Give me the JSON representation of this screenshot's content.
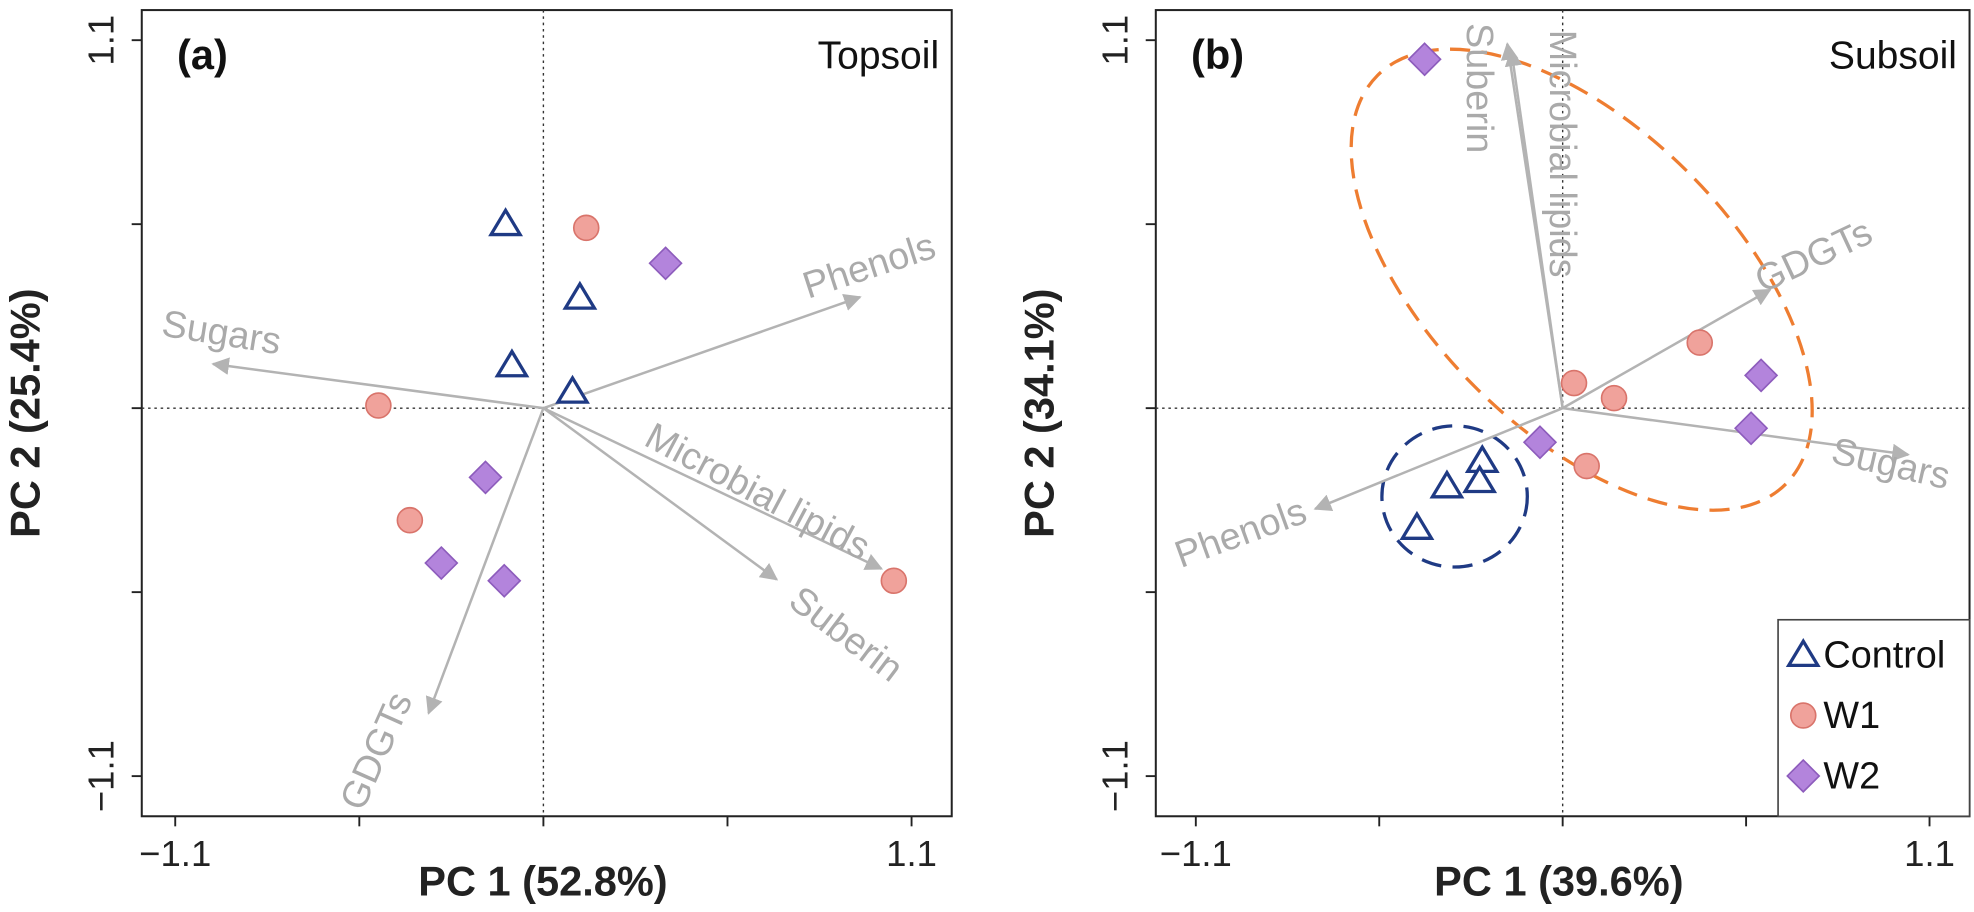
{
  "chart_data": [
    {
      "type": "scatter",
      "panel": "(a)",
      "title": "Topsoil",
      "x_label": "PC 1 (52.8%)",
      "y_label": "PC 2 (25.4%)",
      "xlim": [
        -1.2,
        1.22
      ],
      "ylim": [
        -1.22,
        1.19
      ],
      "xticks": [
        {
          "value": -1.1,
          "label": "−1.1"
        },
        1.1
      ],
      "yticks": [
        {
          "value": -1.1,
          "label": "−1.1"
        },
        1.1
      ],
      "minor_xticks": [
        -0.55,
        0,
        0.55
      ],
      "minor_yticks": [
        -0.55,
        0,
        0.55
      ],
      "series": [
        {
          "name": "Control",
          "marker": "triangle",
          "color": "#1f3a84",
          "x": [
            -0.113,
            0.109,
            -0.094,
            0.087
          ],
          "y": [
            0.55,
            0.33,
            0.128,
            0.049
          ]
        },
        {
          "name": "W1",
          "marker": "circle",
          "color": "#f0a29b",
          "x": [
            0.128,
            -0.493,
            -0.399,
            1.047
          ],
          "y": [
            0.539,
            0.008,
            -0.335,
            -0.516
          ]
        },
        {
          "name": "W2",
          "marker": "diamond",
          "color": "#b384dc",
          "x": [
            0.365,
            -0.173,
            -0.305,
            -0.117
          ],
          "y": [
            0.433,
            -0.207,
            -0.463,
            -0.516
          ]
        }
      ],
      "loadings": [
        {
          "name": "Phenols",
          "x": 0.946,
          "y": 0.332
        },
        {
          "name": "Sugars",
          "x": -0.987,
          "y": 0.132
        },
        {
          "name": "Microbial lipids",
          "x": 1.01,
          "y": -0.48
        },
        {
          "name": "Suberin",
          "x": 0.697,
          "y": -0.512
        },
        {
          "name": "GDGTs",
          "x": -0.343,
          "y": -0.912
        }
      ]
    },
    {
      "type": "scatter",
      "panel": "(b)",
      "title": "Subsoil",
      "x_label": "PC 1 (39.6%)",
      "y_label": "PC 2 (34.1%)",
      "xlim": [
        -1.22,
        1.22
      ],
      "ylim": [
        -1.22,
        1.19
      ],
      "xticks": [
        {
          "value": -1.1,
          "label": "−1.1"
        },
        1.1
      ],
      "yticks": [
        {
          "value": -1.1,
          "label": "−1.1"
        },
        1.1
      ],
      "minor_xticks": [
        -0.55,
        0,
        0.55
      ],
      "minor_yticks": [
        -0.55,
        0,
        0.55
      ],
      "legend": "lower right",
      "series": [
        {
          "name": "Control",
          "marker": "triangle",
          "color": "#1f3a84",
          "x": [
            -0.241,
            -0.347,
            -0.249,
            -0.437
          ],
          "y": [
            -0.158,
            -0.234,
            -0.218,
            -0.358
          ]
        },
        {
          "name": "W1",
          "marker": "circle",
          "color": "#f0a29b",
          "x": [
            0.034,
            0.154,
            0.411,
            0.072
          ],
          "y": [
            0.075,
            0.03,
            0.196,
            -0.173
          ]
        },
        {
          "name": "W2",
          "marker": "diamond",
          "color": "#b384dc",
          "x": [
            -0.414,
            0.595,
            0.565,
            -0.068
          ],
          "y": [
            1.043,
            0.098,
            -0.06,
            -0.102
          ]
        }
      ],
      "loadings": [
        {
          "name": "Suberin",
          "x": -0.166,
          "y": 1.089
        },
        {
          "name": "Microbial lipids",
          "x": -0.154,
          "y": 1.07
        },
        {
          "name": "GDGTs",
          "x": 0.622,
          "y": 0.354
        },
        {
          "name": "Sugars",
          "x": 1.036,
          "y": -0.139
        },
        {
          "name": "Phenols",
          "x": -0.742,
          "y": -0.301
        }
      ],
      "ellipses": [
        {
          "color": "#1f3a84",
          "cx": -0.324,
          "cy": -0.264,
          "rx": 0.218,
          "ry": 0.211,
          "rotation": 0
        },
        {
          "color": "#ee7d31",
          "cx": 0.057,
          "cy": 0.384,
          "rx": 0.866,
          "ry": 0.452,
          "rotation": 45
        }
      ]
    }
  ]
}
